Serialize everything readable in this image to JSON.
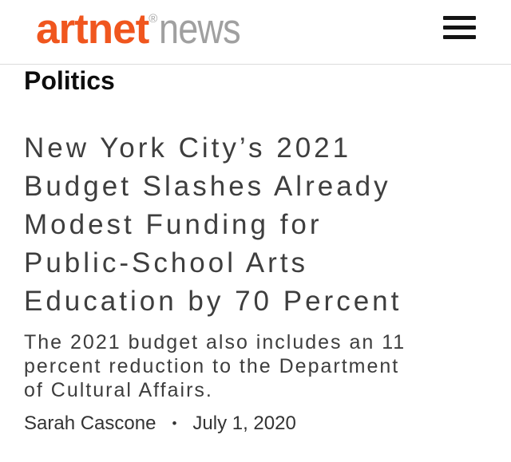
{
  "header": {
    "logo": {
      "brand": "artnet",
      "trademark": "®",
      "suffix": "news"
    },
    "menu_icon": "hamburger-icon"
  },
  "article": {
    "category": "Politics",
    "headline": "New York City’s 2021 Budget Slashes Already Modest Funding for Public-School Arts Education by 70 Percent",
    "headline_lines": [
      "New York City’s 2021",
      "Budget Slashes Already",
      "Modest Funding for",
      "Public-School Arts",
      "Education by 70 Percent"
    ],
    "dek": "The 2021 budget also includes an 11 percent reduction to the Department of Cultural Affairs.",
    "dek_lines": [
      "The 2021 budget also includes an 11",
      "percent reduction to the Department",
      "of Cultural Affairs."
    ],
    "author": "Sarah Cascone",
    "separator": "•",
    "date": "July 1, 2020"
  },
  "colors": {
    "brand_orange": "#f0561e",
    "logo_gray": "#a0a0a0",
    "headline_gray": "#3e3e3e",
    "category_black": "#0d0d0d",
    "divider_gray": "#dcdcdc",
    "hamburger_black": "#141414"
  }
}
